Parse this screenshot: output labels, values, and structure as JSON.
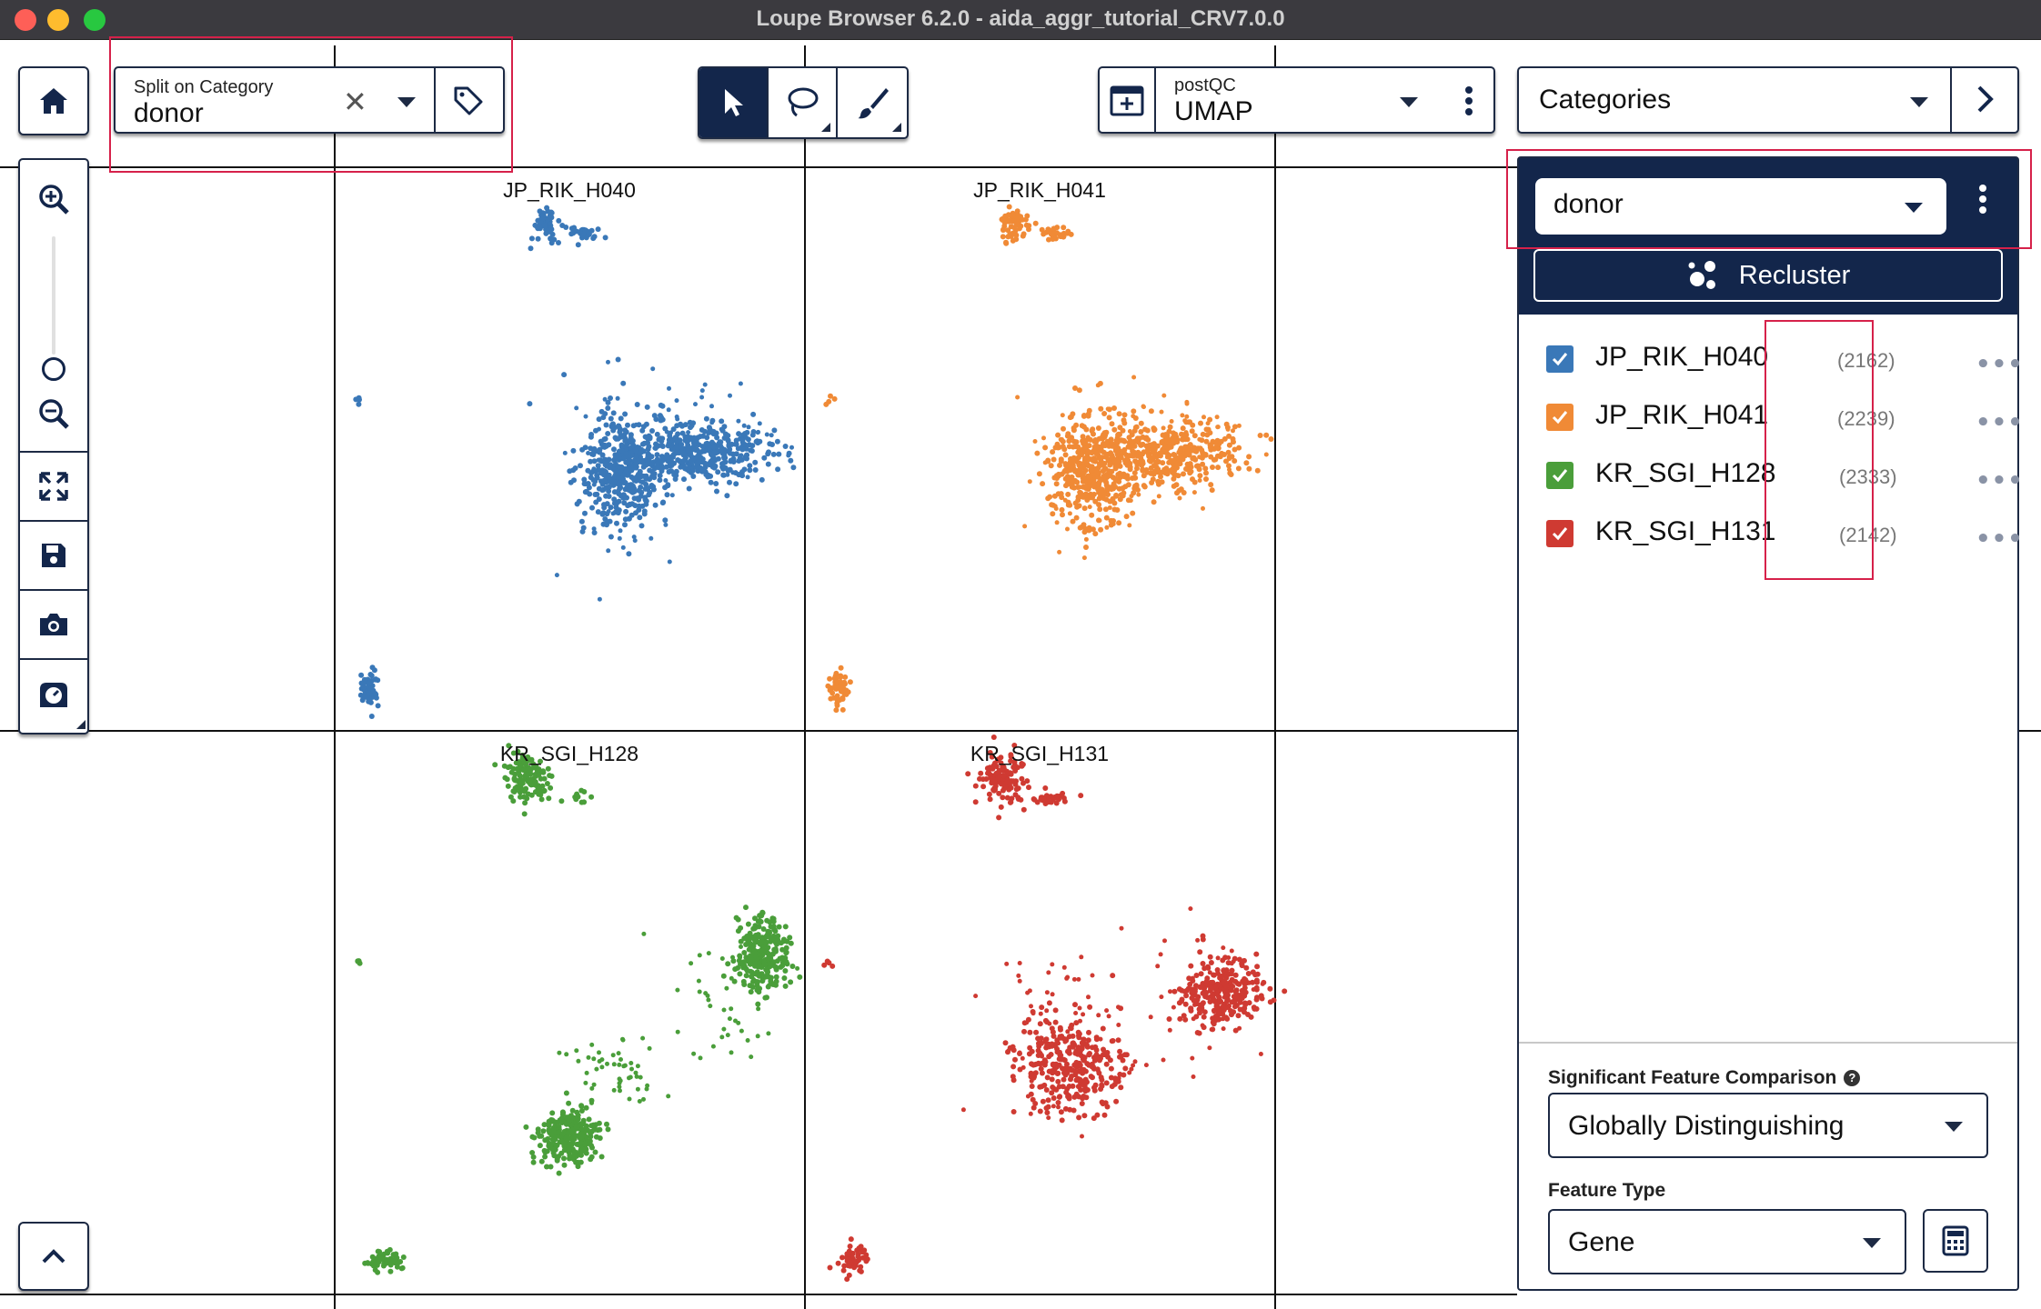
{
  "window": {
    "title": "Loupe Browser 6.2.0 - aida_aggr_tutorial_CRV7.0.0"
  },
  "toolbar": {
    "split": {
      "label": "Split on Category",
      "value": "donor"
    },
    "projection": {
      "label": "postQC",
      "value": "UMAP"
    },
    "categories_label": "Categories"
  },
  "plots": [
    {
      "title": "JP_RIK_H040",
      "color": "#3a78b8"
    },
    {
      "title": "JP_RIK_H041",
      "color": "#f08a36"
    },
    {
      "title": "KR_SGI_H128",
      "color": "#4a9e3a"
    },
    {
      "title": "KR_SGI_H131",
      "color": "#cf3a32"
    }
  ],
  "panel": {
    "category_select": "donor",
    "recluster_label": "Recluster",
    "items": [
      {
        "label": "JP_RIK_H040",
        "count": "(2162)",
        "color": "#3a78b8",
        "checked": true
      },
      {
        "label": "JP_RIK_H041",
        "count": "(2239)",
        "color": "#f08a36",
        "checked": true
      },
      {
        "label": "KR_SGI_H128",
        "count": "(2333)",
        "color": "#4a9e3a",
        "checked": true
      },
      {
        "label": "KR_SGI_H131",
        "count": "(2142)",
        "color": "#cf3a32",
        "checked": true
      }
    ],
    "significant_feature_label": "Significant Feature Comparison",
    "significant_feature_value": "Globally Distinguishing",
    "feature_type_label": "Feature Type",
    "feature_type_value": "Gene"
  },
  "icons": {
    "home": "home-icon",
    "zoom_in": "zoom-in-icon",
    "zoom_out": "zoom-out-icon",
    "fit": "fit-to-view-icon",
    "save": "save-icon",
    "camera": "camera-icon",
    "stopwatch": "stopwatch-icon",
    "up": "chevron-up-icon",
    "tag": "tag-icon",
    "pointer": "pointer-icon",
    "lasso": "lasso-icon",
    "brush": "brush-icon",
    "projection": "projection-icon",
    "more": "more-vertical-icon",
    "next": "chevron-right-icon",
    "calculator": "calculator-icon",
    "recluster": "recluster-icon"
  },
  "colors": {
    "navy": "#13264b",
    "highlight": "#d6214a"
  }
}
